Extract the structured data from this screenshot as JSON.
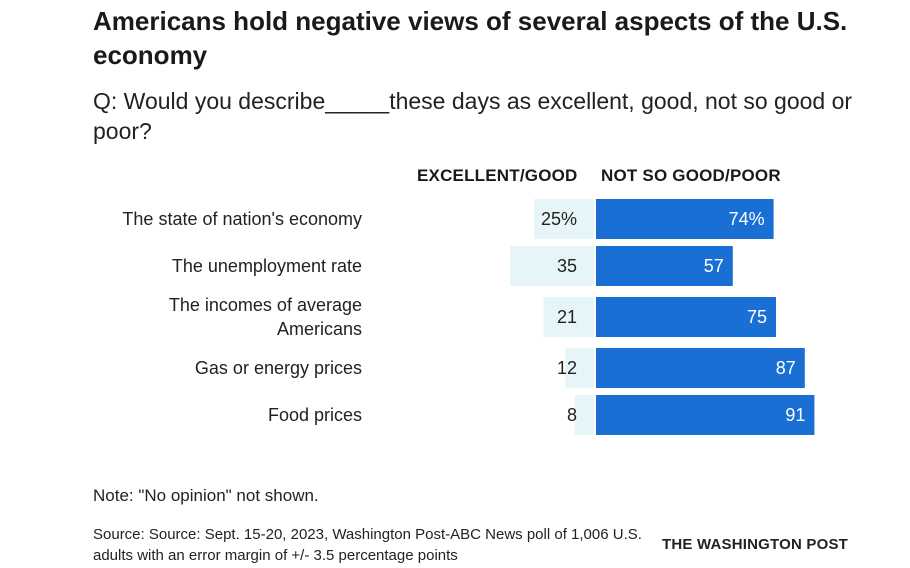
{
  "title": "Americans hold negative views of several aspects of the U.S. economy",
  "subtitle": "Q: Would you describe_____these days as excellent, good, not so good or poor?",
  "chart_data": {
    "type": "bar",
    "categories": [
      "The state of nation's economy",
      "The unemployment rate",
      "The incomes of average Americans",
      "Gas or energy prices",
      "Food prices"
    ],
    "series": [
      {
        "name": "EXCELLENT/GOOD",
        "values": [
          25,
          35,
          21,
          12,
          8
        ],
        "labels": [
          "25%",
          "35",
          "21",
          "12",
          "8"
        ],
        "color": "#e6f6f8"
      },
      {
        "name": "NOT SO GOOD/POOR",
        "values": [
          74,
          57,
          75,
          87,
          91
        ],
        "labels": [
          "74%",
          "57",
          "75",
          "87",
          "91"
        ],
        "color": "#1a6fd4"
      }
    ],
    "orientation": "diverging-horizontal",
    "xlim": [
      0,
      100
    ]
  },
  "note": "Note: \"No opinion\" not shown.",
  "source": "Source: Source: Sept. 15-20, 2023, Washington Post-ABC News poll of 1,006 U.S. adults with an error margin of +/- 3.5 percentage points",
  "credit": "THE WASHINGTON POST"
}
